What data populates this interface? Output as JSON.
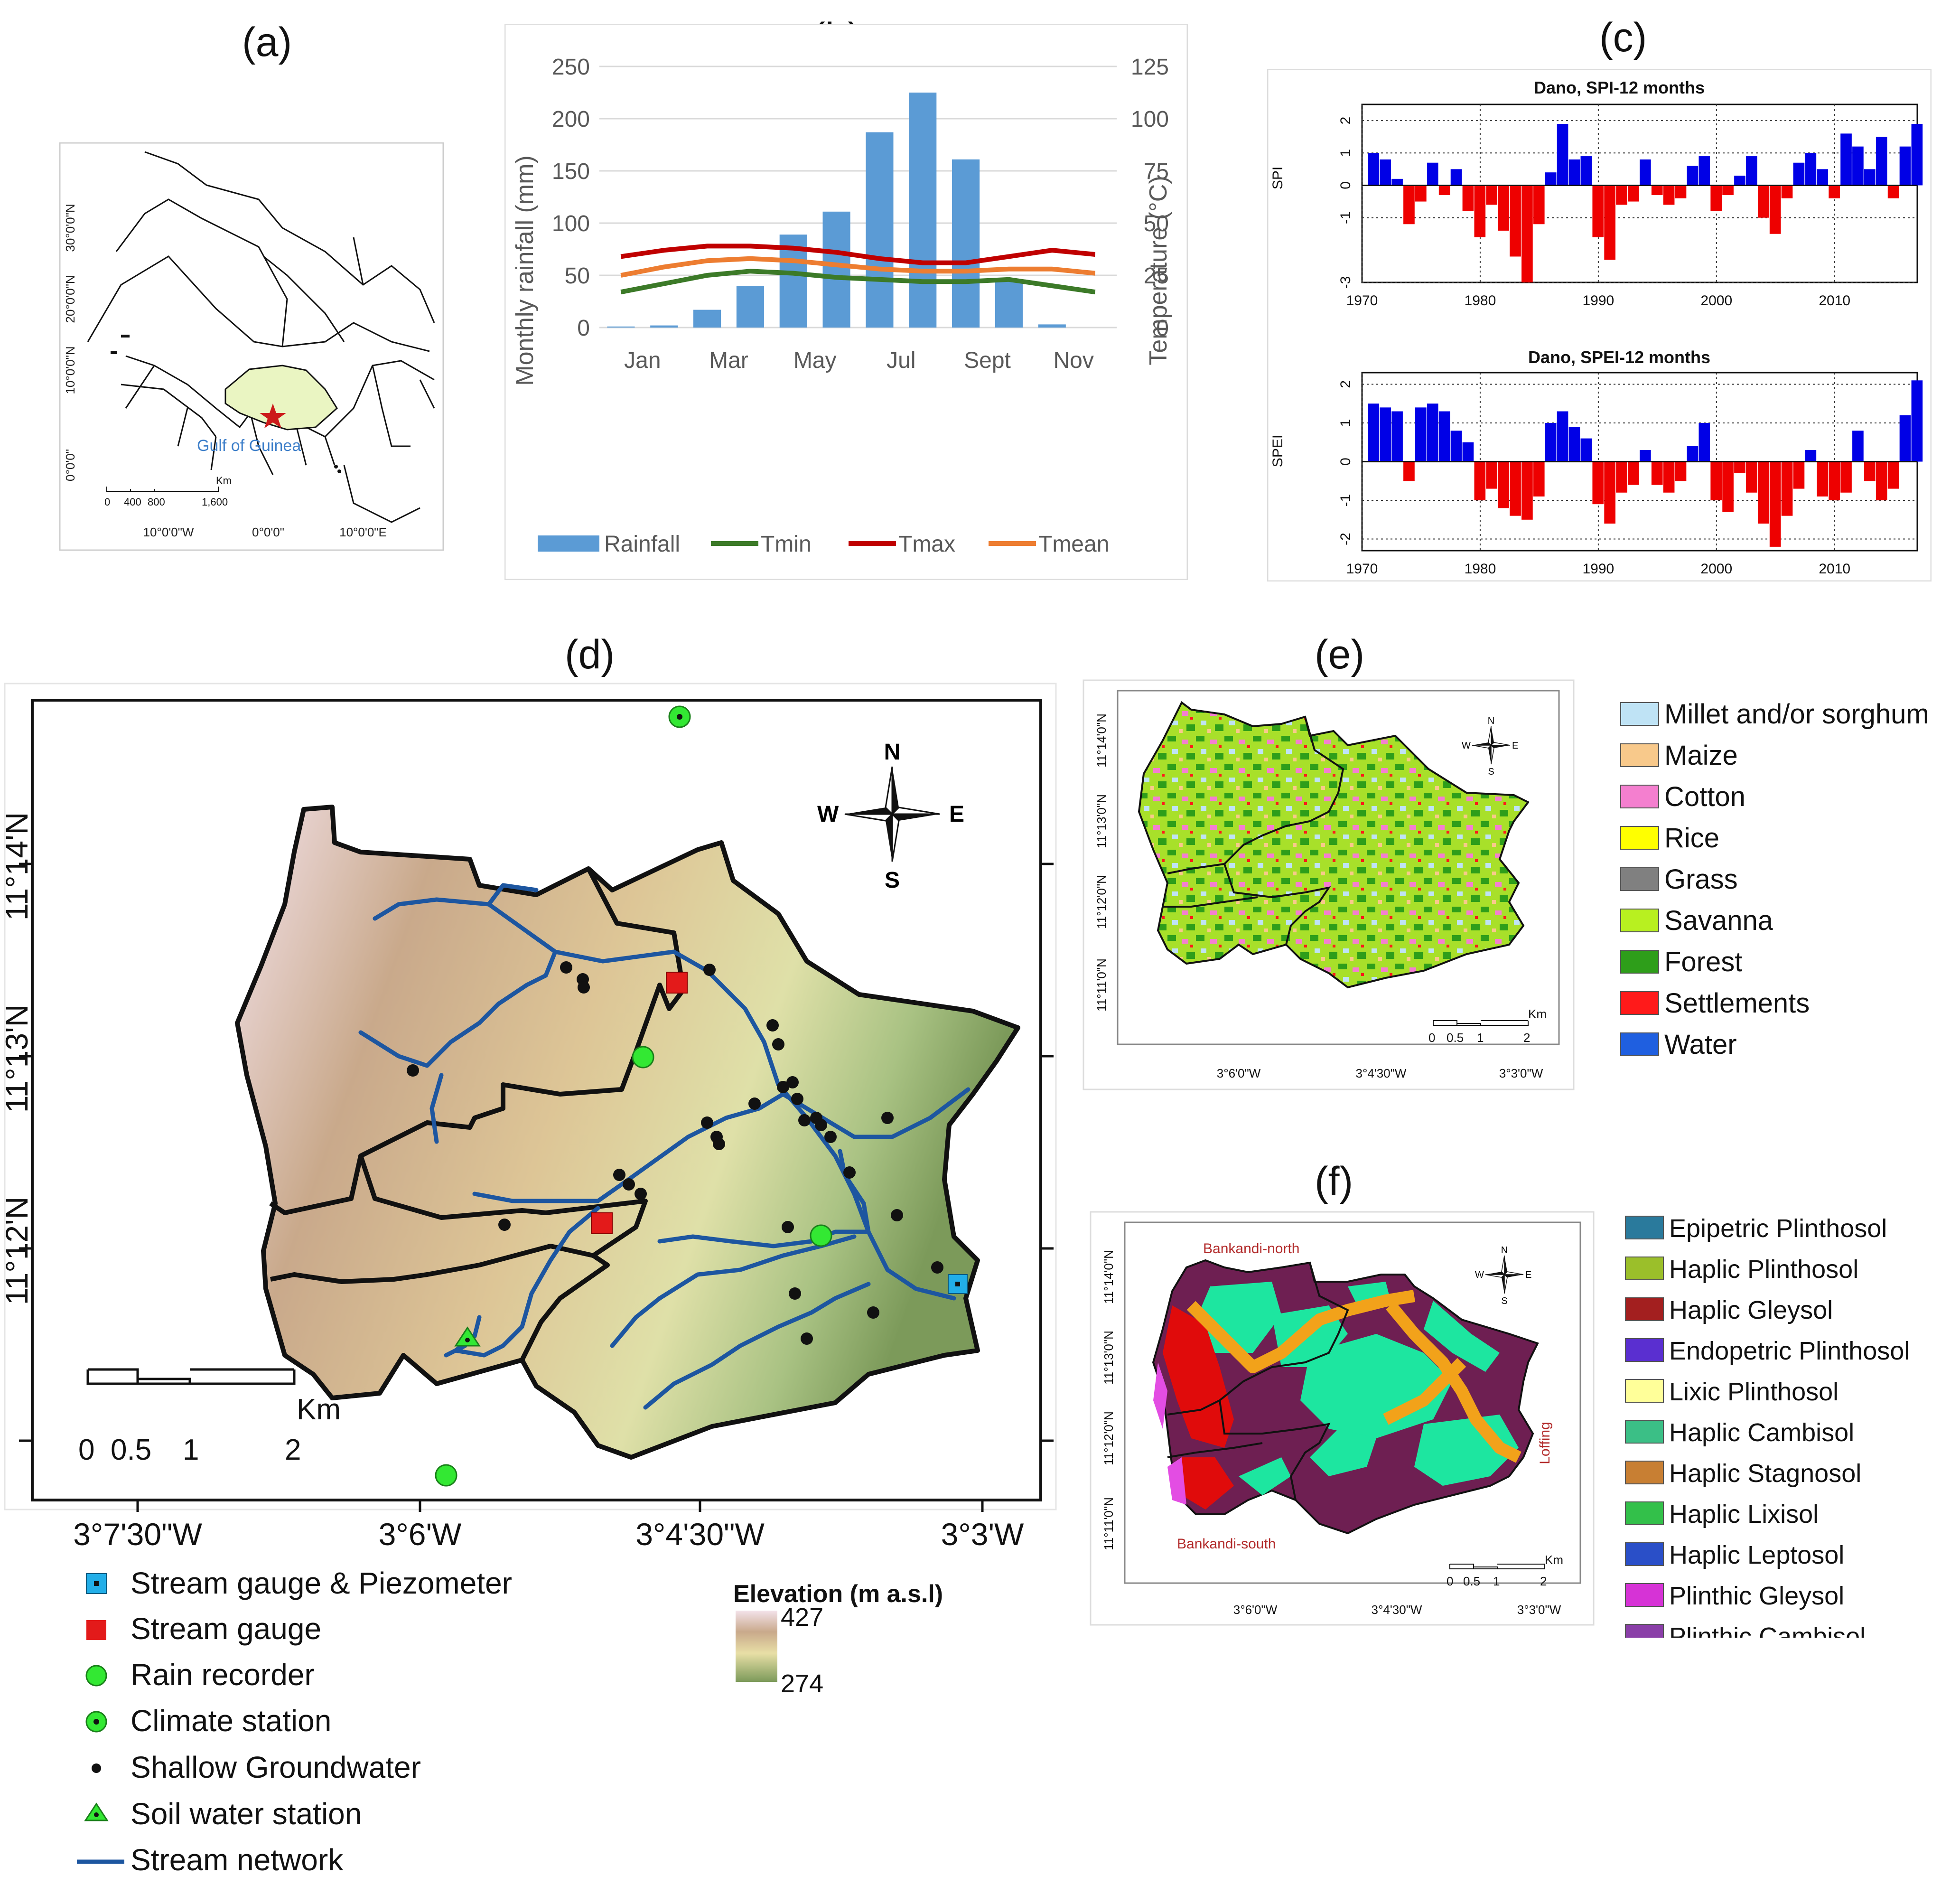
{
  "panels": {
    "a": {
      "label": "(a)",
      "lat_ticks": [
        "30°0'0\"N",
        "20°0'0\"N",
        "10°0'0\"N",
        "0°0'0\""
      ],
      "lon_ticks": [
        "10°0'0\"W",
        "0°0'0\"",
        "10°0'0\"E"
      ],
      "water_label": "Gulf of Guinea",
      "scale": {
        "unit": "Km",
        "ticks": [
          "0",
          "400",
          "800",
          "1,600"
        ]
      }
    },
    "b": {
      "label": "(b)",
      "legend": [
        "Rainfall",
        "Tmin",
        "Tmax",
        "Tmean"
      ]
    },
    "c": {
      "label": "(c)",
      "spi_title": "Dano, SPI-12 months",
      "spei_title": "Dano, SPEI-12 months",
      "spi_ylabel": "SPI",
      "spei_ylabel": "SPEI",
      "spi_yticks": [
        "2",
        "1",
        "0",
        "-1",
        "-3"
      ],
      "spei_yticks": [
        "2",
        "1",
        "0",
        "-1",
        "-2"
      ],
      "xticks": [
        "1970",
        "1980",
        "1990",
        "2000",
        "2010"
      ]
    },
    "d": {
      "label": "(d)",
      "lat_ticks": [
        "11°14'N",
        "11°13'N",
        "11°12'N"
      ],
      "lon_ticks": [
        "3°7'30\"W",
        "3°6'W",
        "3°4'30\"W",
        "3°3'W"
      ],
      "compass": {
        "n": "N",
        "s": "S",
        "e": "E",
        "w": "W"
      },
      "scale": {
        "unit": "Km",
        "ticks": [
          "0",
          "0.5",
          "1",
          "2"
        ]
      },
      "legend": [
        "Stream gauge & Piezometer",
        "Stream gauge",
        "Rain recorder",
        "Climate station",
        "Shallow Groundwater",
        "Soil water station",
        "Stream network"
      ],
      "elevation": {
        "title": "Elevation (m  a.s.l)",
        "max": "427",
        "min": "274"
      }
    },
    "e": {
      "label": "(e)",
      "lat_ticks": [
        "11°14'0\"N",
        "11°13'0\"N",
        "11°12'0\"N",
        "11°11'0\"N"
      ],
      "lon_ticks": [
        "3°6'0\"W",
        "3°4'30\"W",
        "3°3'0\"W"
      ],
      "scale": {
        "unit": "Km",
        "ticks": [
          "0",
          "0.5",
          "1",
          "2"
        ]
      },
      "legend": [
        {
          "label": "Millet and/or sorghum",
          "color": "#bfe3f5"
        },
        {
          "label": "Maize",
          "color": "#f8c98b"
        },
        {
          "label": "Cotton",
          "color": "#f47fcf"
        },
        {
          "label": "Rice",
          "color": "#ffff00"
        },
        {
          "label": "Grass",
          "color": "#808080"
        },
        {
          "label": "Savanna",
          "color": "#b8f020"
        },
        {
          "label": "Forest",
          "color": "#2e9e1a"
        },
        {
          "label": "Settlements",
          "color": "#ff1a1a"
        },
        {
          "label": "Water",
          "color": "#1f5fe0"
        }
      ]
    },
    "f": {
      "label": "(f)",
      "lat_ticks": [
        "11°14'0\"N",
        "11°13'0\"N",
        "11°12'0\"N",
        "11°11'0\"N"
      ],
      "lon_ticks": [
        "3°6'0\"W",
        "3°4'30\"W",
        "3°3'0\"W"
      ],
      "scale": {
        "unit": "Km",
        "ticks": [
          "0",
          "0.5",
          "1",
          "2"
        ]
      },
      "place_labels": [
        "Bankandi-north",
        "Bankandi-south",
        "Loffing"
      ],
      "legend": [
        {
          "label": "Epipetric Plinthosol",
          "color": "#2a7a9c"
        },
        {
          "label": "Haplic Plinthosol",
          "color": "#9bbf2a"
        },
        {
          "label": "Haplic Gleysol",
          "color": "#a31f1f"
        },
        {
          "label": "Endopetric Plinthosol",
          "color": "#5a2fd0"
        },
        {
          "label": "Lixic Plinthosol",
          "color": "#ffff99"
        },
        {
          "label": "Haplic Cambisol",
          "color": "#3bbf86"
        },
        {
          "label": "Haplic Stagnosol",
          "color": "#c87f33"
        },
        {
          "label": "Haplic Lixisol",
          "color": "#33c04a"
        },
        {
          "label": "Haplic Leptosol",
          "color": "#2a4fc8"
        },
        {
          "label": "Plinthic Gleysol",
          "color": "#d633d6"
        },
        {
          "label": "Plinthic Cambisol",
          "color": "#8a3fa8"
        }
      ]
    }
  },
  "chart_data": [
    {
      "type": "bar+line",
      "panel": "b",
      "categories": [
        "Jan",
        "Feb",
        "Mar",
        "Apr",
        "May",
        "Jun",
        "Jul",
        "Aug",
        "Sept",
        "Oct",
        "Nov",
        "Dec"
      ],
      "xtick_labels": [
        "Jan",
        "Mar",
        "May",
        "Jul",
        "Sept",
        "Nov"
      ],
      "ylabel": "Monthly rainfall (mm)",
      "y2label": "Temperature (°C)",
      "ylim": [
        0,
        250
      ],
      "y2lim": [
        0,
        125
      ],
      "yticks": [
        "250",
        "200",
        "150",
        "100",
        "50",
        "0"
      ],
      "y2ticks": [
        "125",
        "100",
        "75",
        "50",
        "25",
        "0"
      ],
      "series": [
        {
          "name": "Rainfall",
          "axis": "left",
          "kind": "bar",
          "color": "#5b9bd5",
          "values": [
            1,
            2,
            17,
            40,
            89,
            111,
            187,
            225,
            161,
            45,
            3,
            0
          ]
        },
        {
          "name": "Tmin",
          "axis": "right",
          "kind": "line",
          "color": "#3c7a28",
          "values": [
            17,
            21,
            25,
            27,
            26,
            24,
            23,
            22,
            22,
            23,
            20,
            17
          ]
        },
        {
          "name": "Tmax",
          "axis": "right",
          "kind": "line",
          "color": "#c00000",
          "values": [
            34,
            37,
            39,
            39,
            38,
            36,
            33,
            31,
            31,
            34,
            37,
            35
          ]
        },
        {
          "name": "Tmean",
          "axis": "right",
          "kind": "line",
          "color": "#ed7d31",
          "values": [
            25,
            29,
            32,
            33,
            32,
            30,
            28,
            27,
            27,
            28,
            28,
            26
          ]
        }
      ]
    },
    {
      "type": "bar",
      "panel": "c",
      "title": "Dano, SPI-12 months",
      "ylabel": "SPI",
      "xlim": [
        1970,
        2017
      ],
      "ylim": [
        -3,
        2.5
      ],
      "years": [
        1971,
        1972,
        1973,
        1974,
        1975,
        1976,
        1977,
        1978,
        1979,
        1980,
        1981,
        1982,
        1983,
        1984,
        1985,
        1986,
        1987,
        1988,
        1989,
        1990,
        1991,
        1992,
        1993,
        1994,
        1995,
        1996,
        1997,
        1998,
        1999,
        2000,
        2001,
        2002,
        2003,
        2004,
        2005,
        2006,
        2007,
        2008,
        2009,
        2010,
        2011,
        2012,
        2013,
        2014,
        2015,
        2016,
        2017
      ],
      "values": [
        1.0,
        0.8,
        0.2,
        -1.2,
        -0.5,
        0.7,
        -0.3,
        0.5,
        -0.8,
        -1.6,
        -0.6,
        -1.4,
        -2.2,
        -3.0,
        -1.2,
        0.4,
        1.9,
        0.8,
        0.9,
        -1.6,
        -2.3,
        -0.6,
        -0.5,
        0.8,
        -0.3,
        -0.6,
        -0.4,
        0.6,
        0.9,
        -0.8,
        -0.3,
        0.3,
        0.9,
        -1.0,
        -1.5,
        -0.4,
        0.7,
        1.0,
        0.5,
        -0.4,
        1.6,
        1.2,
        0.5,
        1.5,
        -0.4,
        1.2,
        1.9
      ]
    },
    {
      "type": "bar",
      "panel": "c",
      "title": "Dano, SPEI-12 months",
      "ylabel": "SPEI",
      "xlim": [
        1970,
        2017
      ],
      "ylim": [
        -2.3,
        2.3
      ],
      "years": [
        1971,
        1972,
        1973,
        1974,
        1975,
        1976,
        1977,
        1978,
        1979,
        1980,
        1981,
        1982,
        1983,
        1984,
        1985,
        1986,
        1987,
        1988,
        1989,
        1990,
        1991,
        1992,
        1993,
        1994,
        1995,
        1996,
        1997,
        1998,
        1999,
        2000,
        2001,
        2002,
        2003,
        2004,
        2005,
        2006,
        2007,
        2008,
        2009,
        2010,
        2011,
        2012,
        2013,
        2014,
        2015,
        2016,
        2017
      ],
      "values": [
        1.5,
        1.4,
        1.3,
        -0.5,
        1.4,
        1.5,
        1.3,
        0.8,
        0.5,
        -1.0,
        -0.7,
        -1.2,
        -1.4,
        -1.5,
        -0.9,
        1.0,
        1.3,
        0.9,
        0.6,
        -1.1,
        -1.6,
        -0.8,
        -0.6,
        0.3,
        -0.6,
        -0.8,
        -0.5,
        0.4,
        1.0,
        -1.0,
        -1.3,
        -0.3,
        -0.8,
        -1.6,
        -2.2,
        -1.4,
        -0.7,
        0.3,
        -0.9,
        -1.0,
        -0.8,
        0.8,
        -0.5,
        -1.0,
        -0.7,
        1.2,
        2.1
      ]
    }
  ]
}
